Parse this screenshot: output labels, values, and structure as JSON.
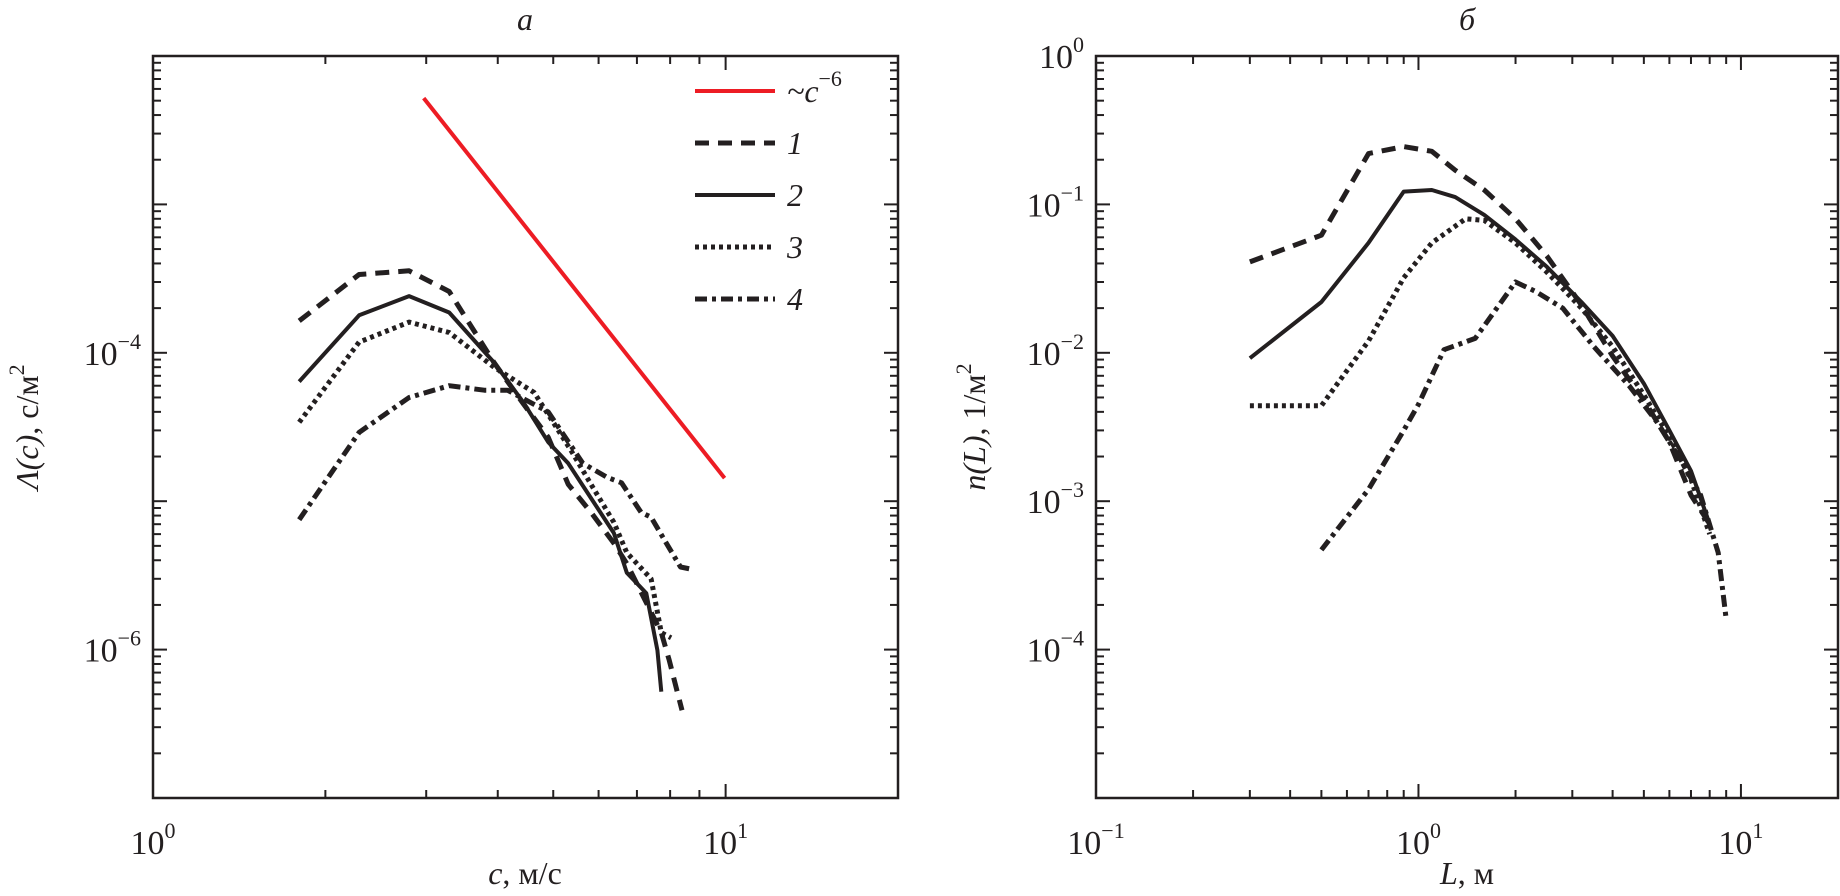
{
  "chart_data": [
    {
      "panel": "a",
      "type": "line",
      "title": "а",
      "xlabel_var": "c",
      "xlabel_units": ", м/с",
      "ylabel_var": "Λ(c)",
      "ylabel_units": ", с/м",
      "ylabel_units_exp": "2",
      "xscale": "log",
      "yscale": "log",
      "xlim": [
        1,
        20
      ],
      "ylim": [
        1e-07,
        0.01
      ],
      "x_tick_labels": [
        {
          "value": 1,
          "base": "10",
          "exp": "0"
        },
        {
          "value": 10,
          "base": "10",
          "exp": "1"
        }
      ],
      "y_tick_labels": [
        {
          "value": 0.0001,
          "base": "10",
          "exp": "−4"
        },
        {
          "value": 1e-06,
          "base": "10",
          "exp": "−6"
        }
      ],
      "y_major_unlabeled": [
        0.001,
        1e-05
      ],
      "legend_position": "top-right",
      "grid": false,
      "series": [
        {
          "name": "~c−6",
          "legend_base": "~c",
          "legend_exp": "−6",
          "style": "solid",
          "color": "#ed1c24",
          "x": [
            2.97,
            9.96
          ],
          "y": [
            0.0052,
            1.43e-05
          ]
        },
        {
          "name": "1",
          "style": "dashed",
          "color": "#231f20",
          "x": [
            1.8,
            2.29,
            2.8,
            3.29,
            3.94,
            4.44,
            4.9,
            5.31,
            5.82,
            6.38,
            6.72,
            7.35,
            7.72,
            7.97,
            8.21,
            8.39
          ],
          "y": [
            0.000164,
            0.000337,
            0.000357,
            0.000259,
            8.6e-05,
            4.5e-05,
            2.7e-05,
            1.3e-05,
            8.4e-06,
            5.2e-06,
            3.8e-06,
            1.9e-06,
            1.3e-06,
            8.5e-07,
            5.4e-07,
            3.9e-07
          ]
        },
        {
          "name": "2",
          "style": "solid",
          "color": "#231f20",
          "x": [
            1.8,
            2.29,
            2.8,
            3.29,
            3.94,
            4.44,
            4.9,
            5.31,
            5.82,
            6.38,
            6.72,
            7.27,
            7.6,
            7.72
          ],
          "y": [
            6.4e-05,
            0.000179,
            0.000241,
            0.000187,
            8.6e-05,
            4.6e-05,
            2.5e-05,
            1.8e-05,
            1.05e-05,
            6.1e-06,
            3.3e-06,
            2.4e-06,
            9.9e-07,
            5.2e-07
          ]
        },
        {
          "name": "3",
          "style": "dotted",
          "color": "#231f20",
          "x": [
            1.8,
            2.29,
            2.8,
            3.29,
            3.94,
            4.63,
            5.0,
            5.41,
            5.82,
            6.38,
            6.72,
            7.41,
            7.72,
            8.03
          ],
          "y": [
            3.4e-05,
            0.000118,
            0.000161,
            0.000137,
            8e-05,
            5.4e-05,
            3.4e-05,
            2.1e-05,
            1.3e-05,
            7.2e-06,
            4.5e-06,
            3e-06,
            1.3e-06,
            1.2e-06
          ]
        },
        {
          "name": "4",
          "style": "dashdot",
          "color": "#231f20",
          "x": [
            1.8,
            2.29,
            2.8,
            3.29,
            3.79,
            4.16,
            4.9,
            5.63,
            6.21,
            6.58,
            7.12,
            7.41,
            7.86,
            8.34,
            8.66
          ],
          "y": [
            7.5e-06,
            2.91e-05,
            5e-05,
            6e-05,
            5.6e-05,
            5.6e-05,
            4e-05,
            1.8e-05,
            1.45e-05,
            1.33e-05,
            8.4e-06,
            7.8e-06,
            5.3e-06,
            3.6e-06,
            3.5e-06
          ]
        }
      ]
    },
    {
      "panel": "b",
      "type": "line",
      "title": "б",
      "xlabel_var": "L",
      "xlabel_units": ", м",
      "ylabel_var": "n(L)",
      "ylabel_units": ", 1/м",
      "ylabel_units_exp": "2",
      "xscale": "log",
      "yscale": "log",
      "xlim": [
        0.1,
        20
      ],
      "ylim": [
        1e-05,
        1
      ],
      "x_tick_labels": [
        {
          "value": 0.1,
          "base": "10",
          "exp": "−1"
        },
        {
          "value": 1,
          "base": "10",
          "exp": "0"
        },
        {
          "value": 10,
          "base": "10",
          "exp": "1"
        }
      ],
      "y_tick_labels": [
        {
          "value": 1,
          "base": "10",
          "exp": "0"
        },
        {
          "value": 0.1,
          "base": "10",
          "exp": "−1"
        },
        {
          "value": 0.01,
          "base": "10",
          "exp": "−2"
        },
        {
          "value": 0.001,
          "base": "10",
          "exp": "−3"
        },
        {
          "value": 0.0001,
          "base": "10",
          "exp": "−4"
        }
      ],
      "legend_position": "none",
      "grid": false,
      "series": [
        {
          "name": "1",
          "style": "dashed",
          "color": "#231f20",
          "x": [
            0.3,
            0.5,
            0.7,
            0.9,
            1.1,
            1.3,
            1.6,
            2.0,
            2.5,
            3.2,
            4.0,
            5.0,
            6.0,
            7.0,
            8.0
          ],
          "y": [
            0.041,
            0.062,
            0.22,
            0.245,
            0.228,
            0.17,
            0.125,
            0.08,
            0.045,
            0.021,
            0.0095,
            0.0048,
            0.0025,
            0.0011,
            0.0007
          ]
        },
        {
          "name": "2",
          "style": "solid",
          "color": "#231f20",
          "x": [
            0.3,
            0.5,
            0.7,
            0.9,
            1.1,
            1.3,
            1.6,
            2.0,
            2.5,
            3.2,
            4.0,
            5.0,
            6.0,
            7.0,
            8.0
          ],
          "y": [
            0.0092,
            0.022,
            0.055,
            0.122,
            0.125,
            0.112,
            0.085,
            0.058,
            0.038,
            0.022,
            0.013,
            0.0062,
            0.003,
            0.0016,
            0.0007
          ]
        },
        {
          "name": "3",
          "style": "dotted",
          "color": "#231f20",
          "x": [
            0.3,
            0.5,
            0.7,
            0.9,
            1.1,
            1.4,
            1.6,
            2.0,
            2.5,
            3.2,
            4.0,
            5.0,
            6.0,
            7.0,
            8.0
          ],
          "y": [
            0.0044,
            0.0044,
            0.012,
            0.032,
            0.055,
            0.08,
            0.078,
            0.055,
            0.035,
            0.02,
            0.011,
            0.0052,
            0.0027,
            0.0014,
            0.0006
          ]
        },
        {
          "name": "4",
          "style": "dashdot",
          "color": "#231f20",
          "x": [
            0.5,
            0.7,
            0.9,
            1.0,
            1.2,
            1.5,
            2.0,
            2.3,
            2.8,
            3.5,
            4.5,
            5.5,
            6.5,
            7.5,
            8.5,
            9.0
          ],
          "y": [
            0.00047,
            0.0012,
            0.003,
            0.0045,
            0.0105,
            0.0125,
            0.03,
            0.026,
            0.02,
            0.011,
            0.006,
            0.0034,
            0.0019,
            0.0011,
            0.00045,
            0.00016
          ]
        }
      ]
    }
  ]
}
